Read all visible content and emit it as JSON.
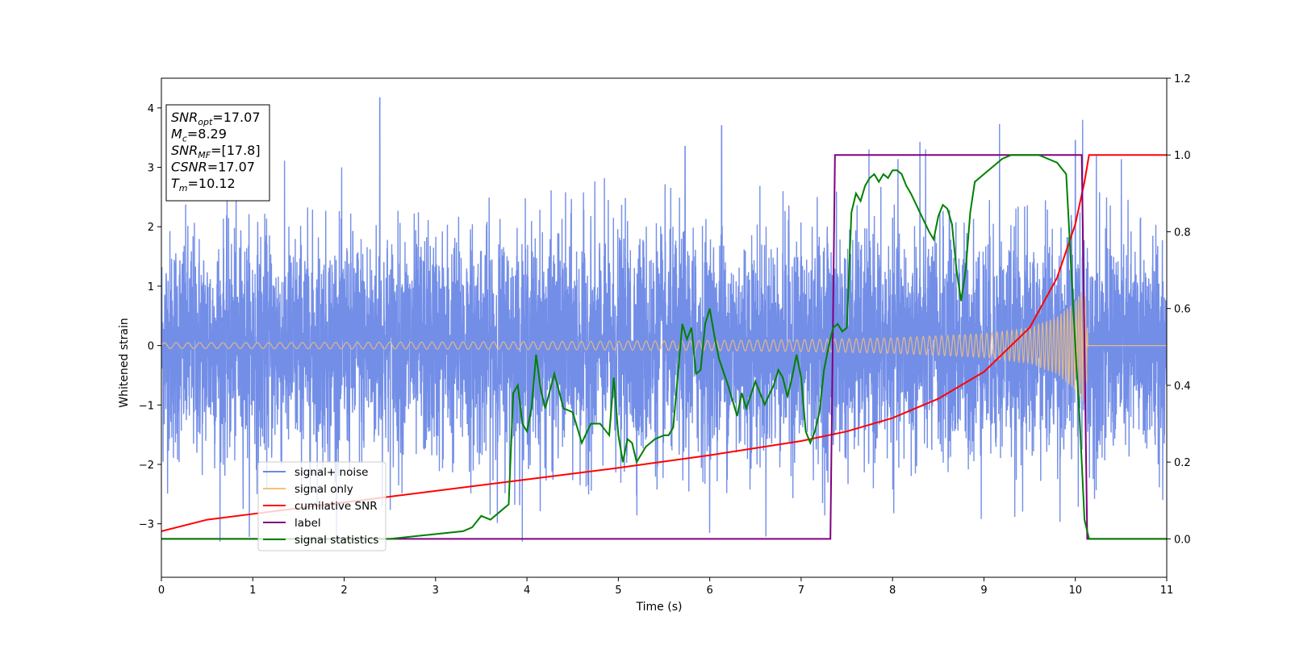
{
  "chart_data": {
    "type": "line",
    "xlabel": "Time (s)",
    "ylabel": "Whitened strain",
    "xlim": [
      0,
      11
    ],
    "ylim_left": [
      -3.9,
      4.5
    ],
    "ylim_right": [
      -0.1,
      1.2
    ],
    "x_ticks": [
      "0",
      "1",
      "2",
      "3",
      "4",
      "5",
      "6",
      "7",
      "8",
      "9",
      "10",
      "11"
    ],
    "y_ticks_left": [
      "−3",
      "−2",
      "−1",
      "0",
      "1",
      "2",
      "3",
      "4"
    ],
    "y_ticks_right": [
      "0.0",
      "0.2",
      "0.4",
      "0.6",
      "0.8",
      "1.0",
      "1.2"
    ],
    "legend_position": "lower-left",
    "info_box": {
      "lines": [
        {
          "sym": "SNR",
          "sub": "opt",
          "value": "=17.07"
        },
        {
          "sym": "M",
          "sub": "c",
          "value": "=8.29"
        },
        {
          "sym": "SNR",
          "sub": "MF",
          "value": "=[17.8]"
        },
        {
          "sym": "CSNR",
          "sub": "",
          "value": "=17.07"
        },
        {
          "sym": "T",
          "sub": "m",
          "value": "=10.12"
        }
      ]
    },
    "series": [
      {
        "name": "signal+ noise",
        "axis": "left",
        "color": "#6b88e6",
        "description_values": {
          "noise_sigma": 1.0,
          "range": [
            -3.3,
            4.2
          ],
          "spikes": [
            [
              2.39,
              4.17
            ],
            [
              6.13,
              3.7
            ],
            [
              5.73,
              3.35
            ],
            [
              8.3,
              3.43
            ],
            [
              9.17,
              3.73
            ],
            [
              10.08,
              3.8
            ],
            [
              10.0,
              3.45
            ],
            [
              10.23,
              3.2
            ]
          ]
        }
      },
      {
        "name": "signal only",
        "axis": "left",
        "color": "#f5c07a",
        "envelope": {
          "x": [
            0,
            1,
            2,
            3,
            4,
            5,
            6,
            7,
            8,
            9,
            9.5,
            9.8,
            10.0,
            10.1,
            10.12,
            10.14,
            11
          ],
          "amp": [
            0.05,
            0.05,
            0.055,
            0.06,
            0.065,
            0.075,
            0.085,
            0.1,
            0.13,
            0.2,
            0.3,
            0.48,
            0.75,
            1.0,
            0.7,
            0.0,
            0.0
          ]
        }
      },
      {
        "name": "cumilative SNR",
        "axis": "right",
        "color": "#ff0000",
        "x": [
          0,
          0.5,
          1,
          2,
          3,
          4,
          5,
          6,
          7,
          7.5,
          8,
          8.5,
          9,
          9.5,
          9.8,
          10.0,
          10.1,
          10.15,
          11
        ],
        "y": [
          0.02,
          0.05,
          0.065,
          0.095,
          0.125,
          0.155,
          0.185,
          0.218,
          0.255,
          0.28,
          0.315,
          0.365,
          0.435,
          0.55,
          0.68,
          0.82,
          0.93,
          1.0,
          1.0
        ]
      },
      {
        "name": "label",
        "axis": "right",
        "color": "#800080",
        "x": [
          0,
          7.32,
          7.37,
          10.07,
          10.13,
          11
        ],
        "y": [
          0.0,
          0.0,
          1.0,
          1.0,
          0.0,
          0.0
        ]
      },
      {
        "name": "signal statistics",
        "axis": "right",
        "color": "#008000",
        "x": [
          0,
          2.5,
          2.7,
          2.9,
          3.1,
          3.3,
          3.4,
          3.5,
          3.6,
          3.7,
          3.8,
          3.85,
          3.9,
          3.95,
          4.0,
          4.05,
          4.1,
          4.15,
          4.2,
          4.3,
          4.4,
          4.5,
          4.6,
          4.7,
          4.8,
          4.9,
          4.95,
          5.0,
          5.05,
          5.1,
          5.15,
          5.2,
          5.3,
          5.4,
          5.5,
          5.55,
          5.6,
          5.7,
          5.75,
          5.8,
          5.85,
          5.9,
          5.95,
          6.0,
          6.05,
          6.1,
          6.2,
          6.3,
          6.35,
          6.4,
          6.5,
          6.6,
          6.7,
          6.75,
          6.8,
          6.85,
          6.9,
          6.95,
          7.0,
          7.05,
          7.1,
          7.15,
          7.2,
          7.25,
          7.3,
          7.35,
          7.4,
          7.45,
          7.5,
          7.55,
          7.6,
          7.65,
          7.7,
          7.75,
          7.8,
          7.85,
          7.9,
          7.95,
          8.0,
          8.05,
          8.1,
          8.15,
          8.2,
          8.3,
          8.4,
          8.45,
          8.5,
          8.55,
          8.6,
          8.65,
          8.7,
          8.75,
          8.8,
          8.85,
          8.9,
          9.0,
          9.1,
          9.2,
          9.3,
          9.4,
          9.5,
          9.6,
          9.7,
          9.8,
          9.9,
          10.0,
          10.05,
          10.1,
          10.15,
          10.2,
          11
        ],
        "y": [
          0.0,
          0.0,
          0.005,
          0.01,
          0.015,
          0.02,
          0.03,
          0.06,
          0.05,
          0.07,
          0.09,
          0.38,
          0.4,
          0.3,
          0.28,
          0.34,
          0.48,
          0.39,
          0.34,
          0.43,
          0.34,
          0.33,
          0.25,
          0.3,
          0.3,
          0.27,
          0.42,
          0.27,
          0.2,
          0.26,
          0.25,
          0.2,
          0.24,
          0.26,
          0.27,
          0.27,
          0.29,
          0.56,
          0.52,
          0.55,
          0.43,
          0.44,
          0.56,
          0.6,
          0.53,
          0.47,
          0.4,
          0.32,
          0.38,
          0.34,
          0.41,
          0.35,
          0.4,
          0.44,
          0.42,
          0.37,
          0.42,
          0.48,
          0.42,
          0.28,
          0.25,
          0.28,
          0.33,
          0.44,
          0.5,
          0.55,
          0.56,
          0.54,
          0.55,
          0.85,
          0.9,
          0.88,
          0.92,
          0.94,
          0.95,
          0.93,
          0.95,
          0.94,
          0.96,
          0.96,
          0.95,
          0.92,
          0.9,
          0.85,
          0.8,
          0.78,
          0.84,
          0.87,
          0.86,
          0.82,
          0.7,
          0.62,
          0.7,
          0.85,
          0.93,
          0.95,
          0.97,
          0.99,
          1.0,
          1.0,
          1.0,
          1.0,
          0.99,
          0.98,
          0.95,
          0.5,
          0.3,
          0.05,
          0.0,
          0.0,
          0.0
        ]
      }
    ]
  }
}
